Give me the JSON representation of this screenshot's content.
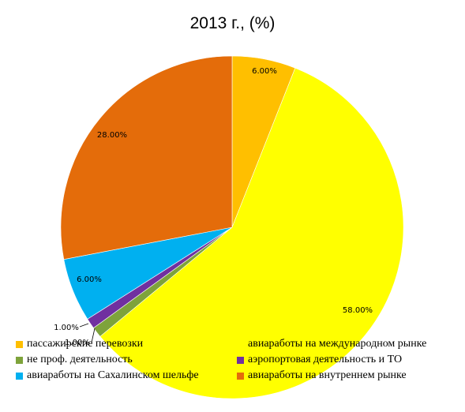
{
  "chart_data": {
    "type": "pie",
    "title": "2013 г., (%)",
    "slices": [
      {
        "label": "пассажирские перевозки",
        "value": 6,
        "value_label": "6.00%",
        "color": "#FFBF00"
      },
      {
        "label": "авиаработы на международном рынке",
        "value": 58,
        "value_label": "58.00%",
        "color": "#FFFF00"
      },
      {
        "label": "не проф. деятельность",
        "value": 1,
        "value_label": "1.00%",
        "color": "#7EA33B"
      },
      {
        "label": "аэропортовая деятельность и ТО",
        "value": 1,
        "value_label": "1.00%",
        "color": "#7030A0"
      },
      {
        "label": "авиаработы на Сахалинском шельфе",
        "value": 6,
        "value_label": "6.00%",
        "color": "#00B0F0"
      },
      {
        "label": "авиаработы на внутреннем рынке",
        "value": 28,
        "value_label": "28.00%",
        "color": "#E46C0A"
      }
    ],
    "legend": {
      "placement": "bottom",
      "order": [
        0,
        1,
        2,
        3,
        4,
        5
      ]
    }
  }
}
